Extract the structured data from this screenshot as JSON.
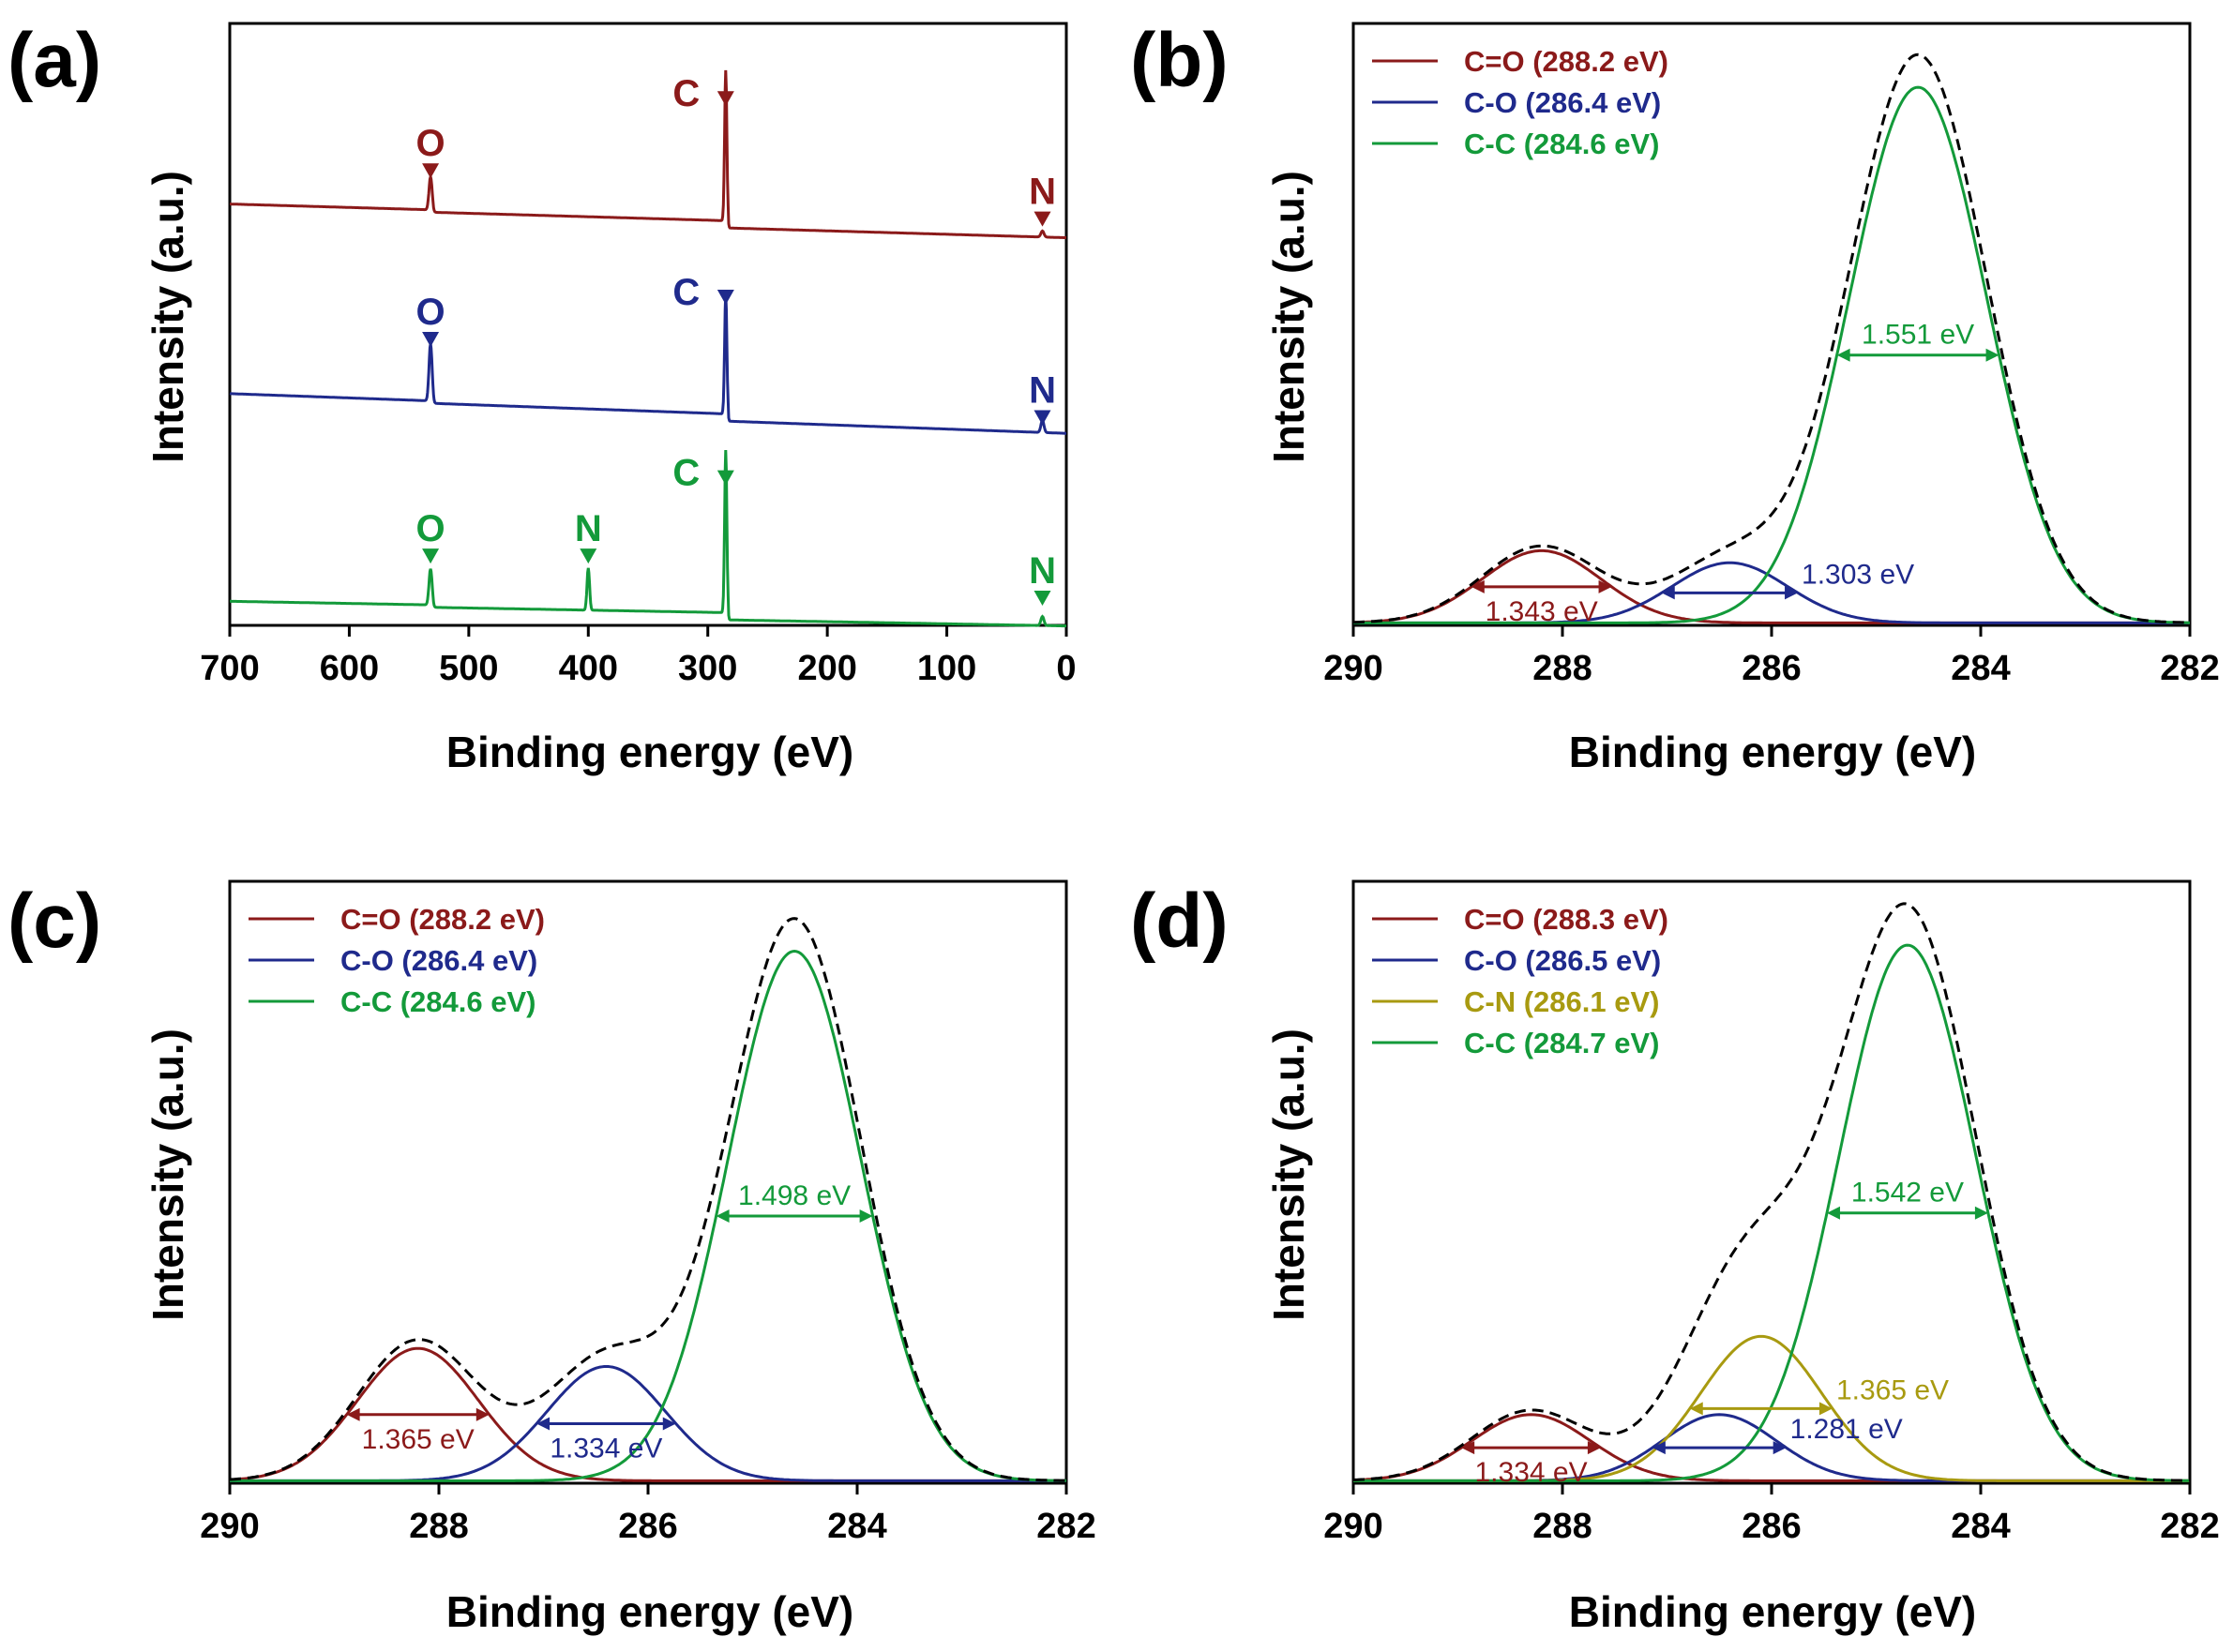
{
  "colors": {
    "red": "#8b1a1a",
    "blue": "#1f2a8c",
    "green": "#139a3a",
    "olive": "#a89a10",
    "envelope": "#000000"
  },
  "chart_data": [
    {
      "panel": "(a)",
      "type": "line",
      "title": "",
      "xlabel": "Binding energy (eV)",
      "ylabel": "Intensity (a.u.)",
      "xlim": [
        700,
        0
      ],
      "x_reversed": true,
      "xticks": [
        "700",
        "600",
        "500",
        "400",
        "300",
        "200",
        "100",
        "0"
      ],
      "xtick_values": [
        700,
        600,
        500,
        400,
        300,
        200,
        100,
        0
      ],
      "grid": false,
      "series": [
        {
          "name": "red survey",
          "color": "red",
          "baseline_start": 0.7,
          "baseline_end": 0.66,
          "peaks": [
            {
              "center": 532,
              "height": 0.055,
              "width": 3
            },
            {
              "center": 285,
              "height": 0.25,
              "width": 2.2
            },
            {
              "center": 20,
              "height": 0.01,
              "width": 3
            }
          ]
        },
        {
          "name": "blue survey",
          "color": "blue",
          "baseline_start": 0.385,
          "baseline_end": 0.335,
          "peaks": [
            {
              "center": 532,
              "height": 0.095,
              "width": 3
            },
            {
              "center": 285,
              "height": 0.2,
              "width": 2.2
            },
            {
              "center": 20,
              "height": 0.02,
              "width": 3
            }
          ]
        },
        {
          "name": "green survey",
          "color": "green",
          "baseline_start": 0.04,
          "baseline_end": 0.015,
          "peaks": [
            {
              "center": 532,
              "height": 0.06,
              "width": 3
            },
            {
              "center": 400,
              "height": 0.07,
              "width": 2.5
            },
            {
              "center": 285,
              "height": 0.27,
              "width": 2.2
            },
            {
              "center": 20,
              "height": 0.015,
              "width": 3
            }
          ]
        }
      ],
      "annotations": [
        {
          "text": "C",
          "x": 285,
          "y": 0.9,
          "color": "red"
        },
        {
          "text": "O",
          "x": 532,
          "y": 0.78,
          "color": "red"
        },
        {
          "text": "N",
          "x": 20,
          "y": 0.7,
          "color": "red"
        },
        {
          "text": "C",
          "x": 285,
          "y": 0.57,
          "color": "blue"
        },
        {
          "text": "O",
          "x": 532,
          "y": 0.5,
          "color": "blue"
        },
        {
          "text": "N",
          "x": 20,
          "y": 0.37,
          "color": "blue"
        },
        {
          "text": "C",
          "x": 285,
          "y": 0.27,
          "color": "green"
        },
        {
          "text": "O",
          "x": 532,
          "y": 0.14,
          "color": "green"
        },
        {
          "text": "N",
          "x": 400,
          "y": 0.14,
          "color": "green"
        },
        {
          "text": "N",
          "x": 20,
          "y": 0.07,
          "color": "green"
        }
      ]
    },
    {
      "panel": "(b)",
      "type": "line",
      "title": "",
      "xlabel": "Binding energy (eV)",
      "ylabel": "Intensity (a.u.)",
      "xlim": [
        290,
        282
      ],
      "x_reversed": true,
      "xticks": [
        "290",
        "288",
        "286",
        "284",
        "282"
      ],
      "xtick_values": [
        290,
        288,
        286,
        284,
        282
      ],
      "grid": false,
      "legend": {
        "position": "top-left",
        "entries": [
          "C=O (288.2 eV)",
          "C-O (286.4 eV)",
          "C-C (284.6 eV)"
        ]
      },
      "series": [
        {
          "name": "C=O (288.2 eV)",
          "color": "red",
          "center": 288.2,
          "fwhm": 1.343,
          "height": 0.12
        },
        {
          "name": "C-O (286.4 eV)",
          "color": "blue",
          "center": 286.4,
          "fwhm": 1.303,
          "height": 0.1
        },
        {
          "name": "C-C (284.6 eV)",
          "color": "green",
          "center": 284.6,
          "fwhm": 1.551,
          "height": 0.89
        }
      ],
      "fwhm_labels": [
        {
          "text": "1.343 eV",
          "series": "C=O (288.2 eV)",
          "color": "red",
          "side": "below"
        },
        {
          "text": "1.303 eV",
          "series": "C-O (286.4 eV)",
          "color": "blue",
          "side": "right"
        },
        {
          "text": "1.551 eV",
          "series": "C-C (284.6 eV)",
          "color": "green",
          "side": "above"
        }
      ]
    },
    {
      "panel": "(c)",
      "type": "line",
      "title": "",
      "xlabel": "Binding energy (eV)",
      "ylabel": "Intensity (a.u.)",
      "xlim": [
        290,
        282
      ],
      "x_reversed": true,
      "xticks": [
        "290",
        "288",
        "286",
        "284",
        "282"
      ],
      "xtick_values": [
        290,
        288,
        286,
        284,
        282
      ],
      "grid": false,
      "legend": {
        "position": "top-left",
        "entries": [
          "C=O (288.2 eV)",
          "C-O (286.4 eV)",
          "C-C (284.6 eV)"
        ]
      },
      "series": [
        {
          "name": "C=O (288.2 eV)",
          "color": "red",
          "center": 288.2,
          "fwhm": 1.365,
          "height": 0.22
        },
        {
          "name": "C-O (286.4 eV)",
          "color": "blue",
          "center": 286.4,
          "fwhm": 1.334,
          "height": 0.19
        },
        {
          "name": "C-C (284.6 eV)",
          "color": "green",
          "center": 284.6,
          "fwhm": 1.498,
          "height": 0.88
        }
      ],
      "fwhm_labels": [
        {
          "text": "1.365 eV",
          "series": "C=O (288.2 eV)",
          "color": "red",
          "side": "below"
        },
        {
          "text": "1.334 eV",
          "series": "C-O (286.4 eV)",
          "color": "blue",
          "side": "below"
        },
        {
          "text": "1.498 eV",
          "series": "C-C (284.6 eV)",
          "color": "green",
          "side": "above"
        }
      ]
    },
    {
      "panel": "(d)",
      "type": "line",
      "title": "",
      "xlabel": "Binding energy (eV)",
      "ylabel": "Intensity (a.u.)",
      "xlim": [
        290,
        282
      ],
      "x_reversed": true,
      "xticks": [
        "290",
        "288",
        "286",
        "284",
        "282"
      ],
      "xtick_values": [
        290,
        288,
        286,
        284,
        282
      ],
      "grid": false,
      "legend": {
        "position": "top-left",
        "entries": [
          "C=O (288.3 eV)",
          "C-O (286.5 eV)",
          "C-N (286.1 eV)",
          "C-C (284.7 eV)"
        ]
      },
      "series": [
        {
          "name": "C=O (288.3 eV)",
          "color": "red",
          "center": 288.3,
          "fwhm": 1.334,
          "height": 0.11
        },
        {
          "name": "C-O (286.5 eV)",
          "color": "blue",
          "center": 286.5,
          "fwhm": 1.281,
          "height": 0.11
        },
        {
          "name": "C-N (286.1 eV)",
          "color": "olive",
          "center": 286.1,
          "fwhm": 1.365,
          "height": 0.24
        },
        {
          "name": "C-C (284.7 eV)",
          "color": "green",
          "center": 284.7,
          "fwhm": 1.542,
          "height": 0.89
        }
      ],
      "fwhm_labels": [
        {
          "text": "1.334 eV",
          "series": "C=O (288.3 eV)",
          "color": "red",
          "side": "below"
        },
        {
          "text": "1.281 eV",
          "series": "C-O (286.5 eV)",
          "color": "blue",
          "side": "right"
        },
        {
          "text": "1.365 eV",
          "series": "C-N (286.1 eV)",
          "color": "olive",
          "side": "right"
        },
        {
          "text": "1.542 eV",
          "series": "C-C (284.7 eV)",
          "color": "green",
          "side": "above"
        }
      ]
    }
  ]
}
